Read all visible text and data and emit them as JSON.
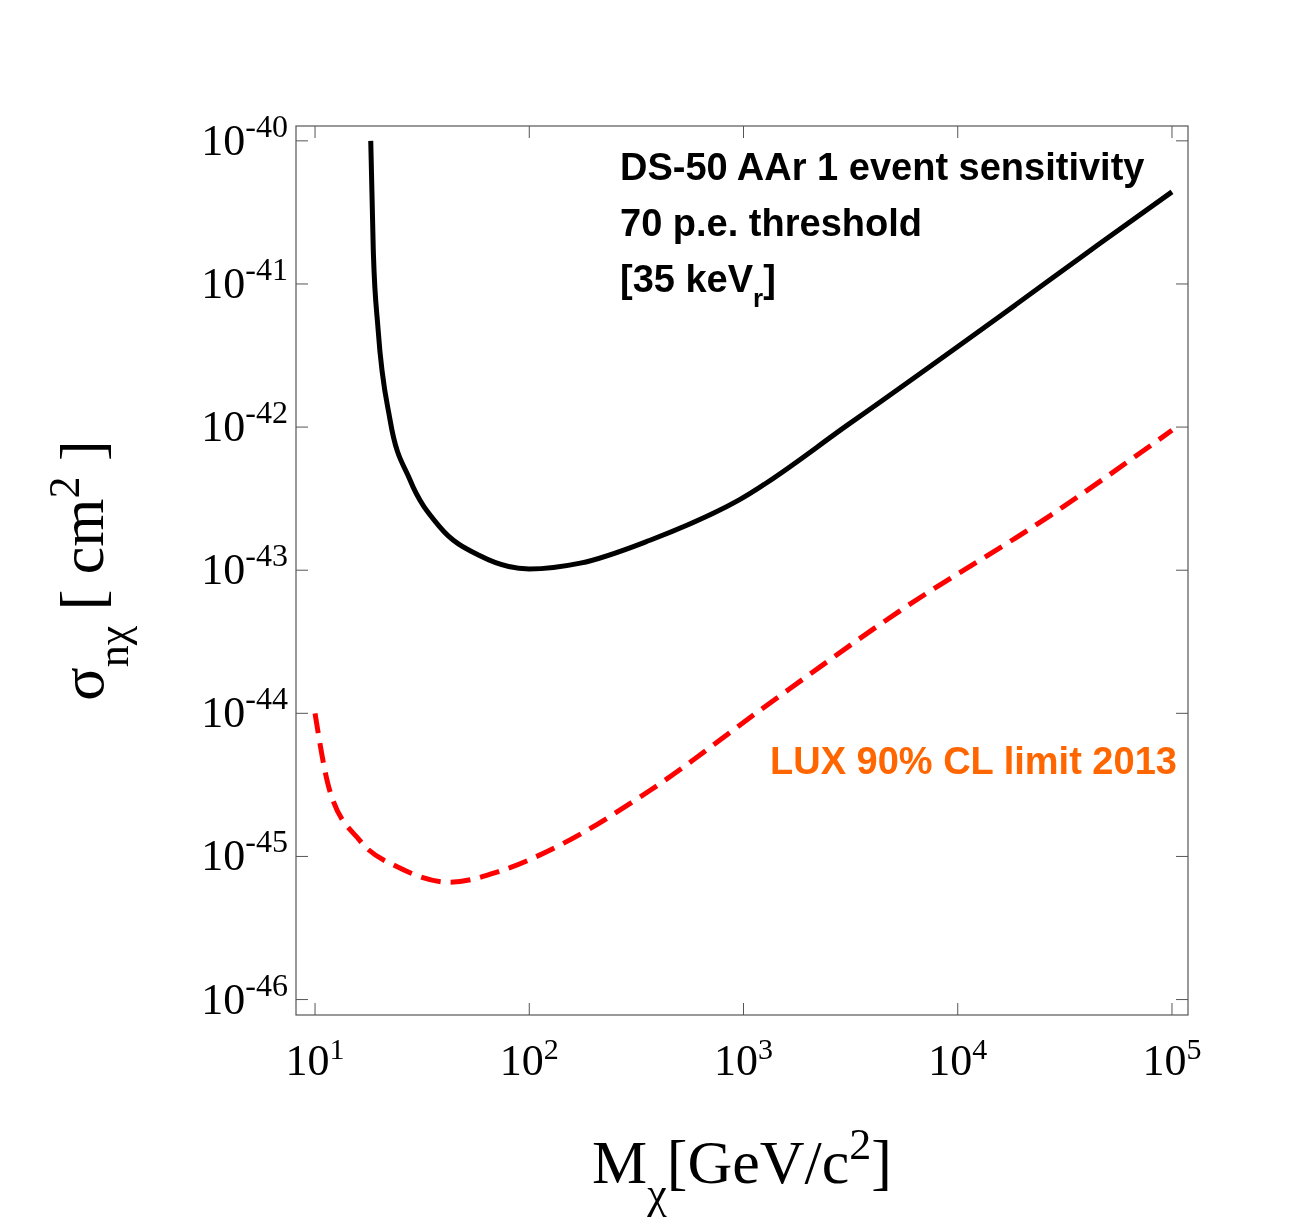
{
  "chart_data": {
    "type": "line",
    "log": "xy",
    "xlabel": "M$_{χ}$[GeV/c$^{2}$]",
    "ylabel": "σ$_{nχ}$ [ cm$^{2}$ ]",
    "xlim": [
      8.15,
      118800
    ],
    "ylim": [
      7.8e-47,
      1.27e-40
    ],
    "xticks": [
      {
        "value": 10,
        "label": "10$^{1}$"
      },
      {
        "value": 100,
        "label": "10$^{2}$"
      },
      {
        "value": 1000,
        "label": "10$^{3}$"
      },
      {
        "value": 10000,
        "label": "10$^{4}$"
      },
      {
        "value": 100000,
        "label": "10$^{5}$"
      }
    ],
    "yticks": [
      {
        "value": 1e-46,
        "label": "10$^{-46}$"
      },
      {
        "value": 1e-45,
        "label": "10$^{-45}$"
      },
      {
        "value": 1e-44,
        "label": "10$^{-44}$"
      },
      {
        "value": 1e-43,
        "label": "10$^{-43}$"
      },
      {
        "value": 1e-42,
        "label": "10$^{-42}$"
      },
      {
        "value": 1e-41,
        "label": "10$^{-41}$"
      },
      {
        "value": 1e-40,
        "label": "10$^{-40}$"
      }
    ],
    "grid": false,
    "marker": "none",
    "series": [
      {
        "color": "#000000",
        "line_style": "solid",
        "x": [
          18.2,
          18.7,
          19.7,
          22.4,
          27.7,
          38.3,
          58.9,
          100,
          173,
          366,
          955,
          3160,
          15850,
          45700,
          100000
        ],
        "values": [
          1e-40,
          1.74e-41,
          4.8e-42,
          1.12e-42,
          4.3e-43,
          2e-43,
          1.26e-43,
          1.02e-43,
          1.12e-43,
          1.62e-43,
          3.1e-43,
          1.07e-42,
          6e-42,
          1.9e-41,
          4.4e-41
        ]
      },
      {
        "color": "#ff0000",
        "line_style": "dashed",
        "x": [
          10,
          11.7,
          16.2,
          24.9,
          42.7,
          73.1,
          139,
          367,
          1194,
          5370,
          26900,
          100000
        ],
        "values": [
          1e-44,
          2.9e-45,
          1.29e-45,
          8.3e-46,
          6.6e-46,
          7.9e-46,
          1.2e-45,
          2.9e-45,
          1.05e-44,
          5.2e-44,
          2.4e-43,
          9.5e-43
        ]
      }
    ],
    "annotations": [
      "DS-50 AAr 1 event sensitivity",
      "70 p.e. threshold",
      "[35 keV$_{r}$]",
      "LUX 90% CL limit 2013"
    ]
  }
}
